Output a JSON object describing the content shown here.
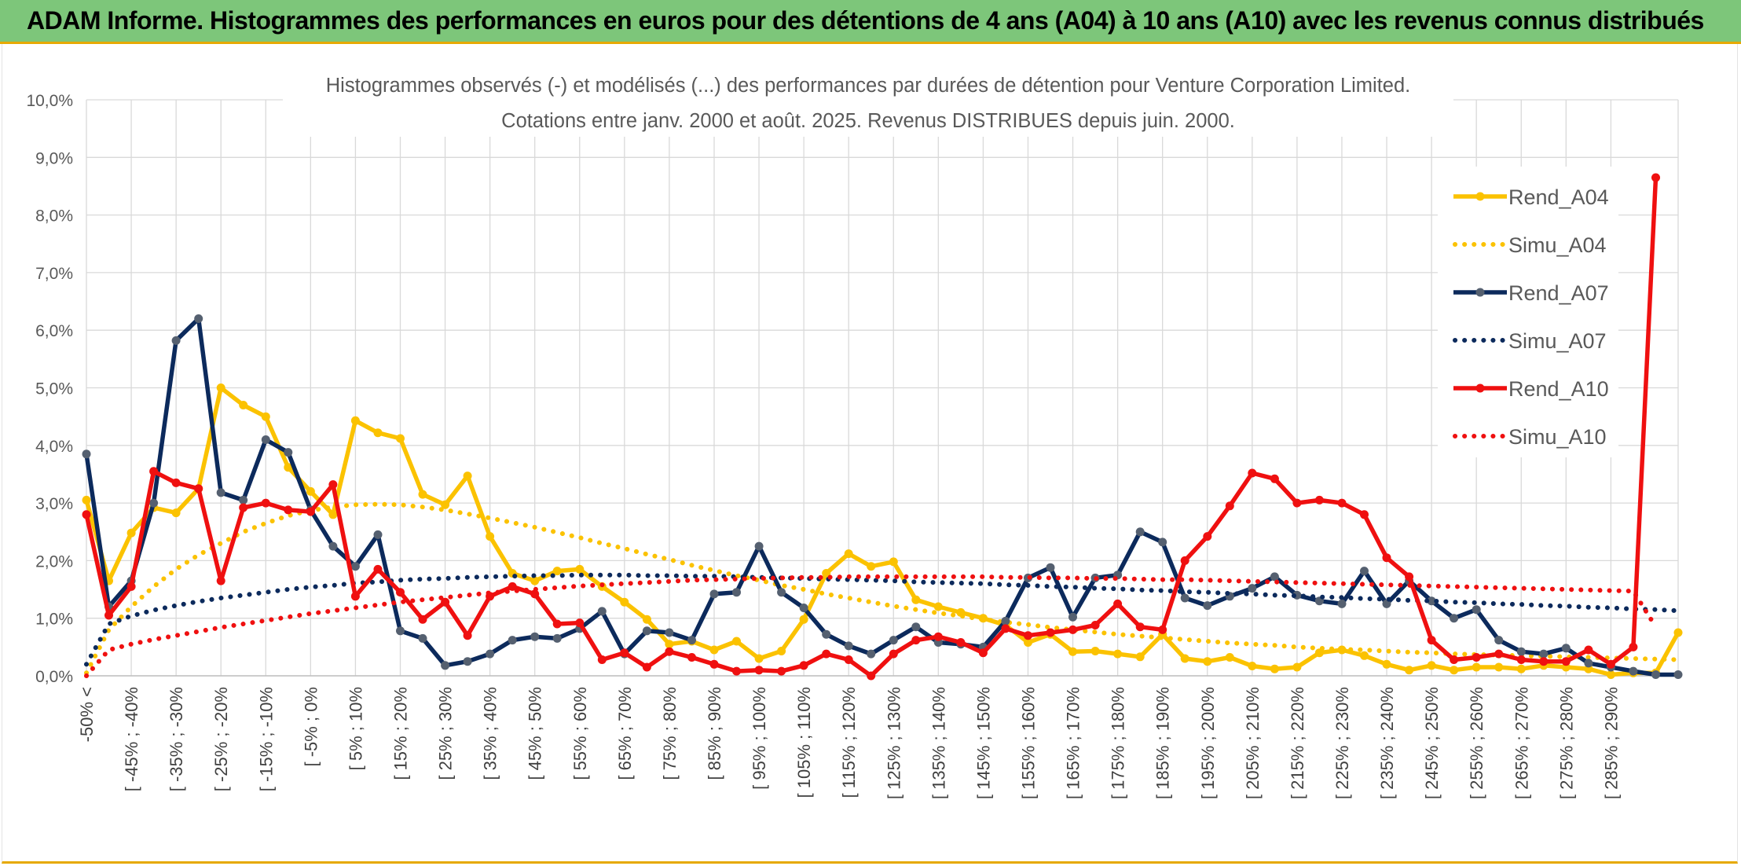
{
  "header": {
    "title": "ADAM Informe. Histogrammes des performances en euros pour des détentions de 4 ans (A04) à 10 ans (A10) avec les revenus connus distribués"
  },
  "colors": {
    "banner": "#7dc67a",
    "accent": "#e6a900",
    "A04": "#fbc200",
    "A07": "#0c2a5c",
    "A10": "#ef1010"
  },
  "chart_data": {
    "type": "line",
    "title": "Histogrammes observés (-) et modélisés (...) des performances par durées de détention pour Venture Corporation Limited.",
    "subtitle": "Cotations entre janv. 2000 et août. 2025. Revenus DISTRIBUES depuis juin. 2000.",
    "ylim": [
      0,
      10
    ],
    "y_ticks": [
      "0,0%",
      "1,0%",
      "2,0%",
      "3,0%",
      "4,0%",
      "5,0%",
      "6,0%",
      "7,0%",
      "8,0%",
      "9,0%",
      "10,0%"
    ],
    "x_tick_labels": [
      "-50% <",
      "[ -45% ; -40%",
      "[ -35% ; -30%",
      "[ -25% ; -20%",
      "[ -15% ; -10%",
      "[ -5% ; 0%",
      "[ 5% ; 10%",
      "[ 15% ; 20%",
      "[ 25% ; 30%",
      "[ 35% ; 40%",
      "[ 45% ; 50%",
      "[ 55% ; 60%",
      "[ 65% ; 70%",
      "[ 75% ; 80%",
      "[ 85% ; 90%",
      "[ 95% ; 100%",
      "[ 105% ; 110%",
      "[ 115% ; 120%",
      "[ 125% ; 130%",
      "[ 135% ; 140%",
      "[ 145% ; 150%",
      "[ 155% ; 160%",
      "[ 165% ; 170%",
      "[ 175% ; 180%",
      "[ 185% ; 190%",
      "[ 195% ; 200%",
      "[ 205% ; 210%",
      "[ 215% ; 220%",
      "[ 225% ; 230%",
      "[ 235% ; 240%",
      "[ 245% ; 250%",
      "[ 255% ; 260%",
      "[ 265% ; 270%",
      "[ 275% ; 280%",
      "[ 285% ; 290%"
    ],
    "grid": "vertical and horizontal",
    "legend_position": "right",
    "series": [
      {
        "name": "Rend_A04",
        "style": "solid",
        "color": "#fbc200",
        "values": [
          3.05,
          1.65,
          2.48,
          2.92,
          2.83,
          3.25,
          5.0,
          4.7,
          4.5,
          3.62,
          3.2,
          2.8,
          4.43,
          4.22,
          4.12,
          3.15,
          2.97,
          3.47,
          2.42,
          1.78,
          1.65,
          1.82,
          1.85,
          1.55,
          1.28,
          0.98,
          0.55,
          0.6,
          0.45,
          0.6,
          0.3,
          0.43,
          0.98,
          1.78,
          2.12,
          1.9,
          1.98,
          1.32,
          1.2,
          1.1,
          1.0,
          0.88,
          0.58,
          0.72,
          0.42,
          0.43,
          0.38,
          0.33,
          0.72,
          0.3,
          0.25,
          0.32,
          0.17,
          0.12,
          0.15,
          0.4,
          0.45,
          0.35,
          0.2,
          0.1,
          0.18,
          0.1,
          0.15,
          0.15,
          0.12,
          0.18,
          0.15,
          0.12,
          0.02,
          0.05,
          0.05,
          0.75
        ]
      },
      {
        "name": "Simu_A04",
        "style": "dotted",
        "color": "#fbc200",
        "values": [
          0.05,
          0.8,
          1.2,
          1.55,
          1.85,
          2.1,
          2.3,
          2.5,
          2.65,
          2.78,
          2.87,
          2.93,
          2.97,
          2.98,
          2.97,
          2.93,
          2.88,
          2.81,
          2.74,
          2.66,
          2.58,
          2.49,
          2.4,
          2.3,
          2.21,
          2.11,
          2.02,
          1.92,
          1.83,
          1.74,
          1.66,
          1.57,
          1.5,
          1.42,
          1.35,
          1.28,
          1.21,
          1.15,
          1.09,
          1.04,
          0.98,
          0.93,
          0.89,
          0.84,
          0.8,
          0.76,
          0.72,
          0.69,
          0.66,
          0.63,
          0.6,
          0.57,
          0.55,
          0.53,
          0.5,
          0.48,
          0.46,
          0.45,
          0.43,
          0.41,
          0.4,
          0.38,
          0.37,
          0.36,
          0.35,
          0.34,
          0.33,
          0.32,
          0.31,
          0.3,
          0.29,
          0.28
        ]
      },
      {
        "name": "Rend_A07",
        "style": "solid",
        "color": "#0c2a5c",
        "values": [
          3.85,
          1.2,
          1.65,
          3.0,
          5.82,
          6.2,
          3.18,
          3.05,
          4.1,
          3.88,
          2.88,
          2.25,
          1.9,
          2.45,
          0.78,
          0.65,
          0.18,
          0.25,
          0.38,
          0.62,
          0.68,
          0.65,
          0.82,
          1.12,
          0.38,
          0.78,
          0.75,
          0.62,
          1.42,
          1.45,
          2.25,
          1.45,
          1.18,
          0.72,
          0.52,
          0.38,
          0.62,
          0.85,
          0.58,
          0.55,
          0.5,
          0.95,
          1.7,
          1.88,
          1.02,
          1.7,
          1.75,
          2.5,
          2.32,
          1.35,
          1.22,
          1.38,
          1.52,
          1.72,
          1.4,
          1.3,
          1.25,
          1.82,
          1.25,
          1.65,
          1.3,
          1.0,
          1.15,
          0.62,
          0.42,
          0.38,
          0.48,
          0.22,
          0.15,
          0.08,
          0.02,
          0.02
        ]
      },
      {
        "name": "Simu_A07",
        "style": "dotted",
        "color": "#0c2a5c",
        "values": [
          0.2,
          0.9,
          1.04,
          1.14,
          1.22,
          1.29,
          1.35,
          1.4,
          1.45,
          1.5,
          1.54,
          1.57,
          1.61,
          1.63,
          1.66,
          1.68,
          1.69,
          1.71,
          1.72,
          1.73,
          1.74,
          1.74,
          1.75,
          1.75,
          1.75,
          1.74,
          1.74,
          1.73,
          1.73,
          1.72,
          1.71,
          1.7,
          1.69,
          1.68,
          1.67,
          1.66,
          1.65,
          1.63,
          1.62,
          1.61,
          1.6,
          1.58,
          1.57,
          1.55,
          1.54,
          1.52,
          1.51,
          1.49,
          1.48,
          1.46,
          1.45,
          1.43,
          1.42,
          1.4,
          1.39,
          1.37,
          1.36,
          1.34,
          1.33,
          1.31,
          1.3,
          1.28,
          1.27,
          1.25,
          1.24,
          1.22,
          1.21,
          1.19,
          1.18,
          1.16,
          1.15,
          1.13
        ]
      },
      {
        "name": "Rend_A10",
        "style": "solid",
        "color": "#ef1010",
        "values": [
          2.8,
          1.05,
          1.55,
          3.55,
          3.35,
          3.25,
          1.65,
          2.92,
          3.0,
          2.88,
          2.85,
          3.32,
          1.38,
          1.85,
          1.45,
          0.98,
          1.28,
          0.7,
          1.38,
          1.55,
          1.42,
          0.9,
          0.92,
          0.28,
          0.4,
          0.15,
          0.42,
          0.32,
          0.2,
          0.08,
          0.1,
          0.08,
          0.18,
          0.38,
          0.28,
          0.0,
          0.38,
          0.62,
          0.68,
          0.58,
          0.4,
          0.82,
          0.7,
          0.75,
          0.8,
          0.88,
          1.25,
          0.85,
          0.8,
          2.0,
          2.42,
          2.95,
          3.52,
          3.42,
          3.0,
          3.05,
          3.0,
          2.8,
          2.05,
          1.72,
          0.62,
          0.28,
          0.32,
          0.38,
          0.28,
          0.25,
          0.25,
          0.45,
          0.2,
          0.5,
          8.65
        ]
      },
      {
        "name": "Simu_A10",
        "style": "dotted",
        "color": "#ef1010",
        "values": [
          0.0,
          0.45,
          0.55,
          0.63,
          0.7,
          0.77,
          0.84,
          0.9,
          0.96,
          1.02,
          1.08,
          1.13,
          1.18,
          1.23,
          1.28,
          1.32,
          1.36,
          1.4,
          1.44,
          1.47,
          1.5,
          1.53,
          1.56,
          1.58,
          1.6,
          1.62,
          1.64,
          1.66,
          1.67,
          1.68,
          1.69,
          1.7,
          1.71,
          1.71,
          1.72,
          1.72,
          1.72,
          1.72,
          1.72,
          1.72,
          1.72,
          1.71,
          1.71,
          1.7,
          1.7,
          1.69,
          1.69,
          1.68,
          1.67,
          1.67,
          1.66,
          1.65,
          1.64,
          1.63,
          1.62,
          1.61,
          1.6,
          1.59,
          1.58,
          1.57,
          1.56,
          1.55,
          1.54,
          1.53,
          1.52,
          1.51,
          1.5,
          1.49,
          1.48,
          1.47,
          0.85
        ]
      }
    ]
  }
}
